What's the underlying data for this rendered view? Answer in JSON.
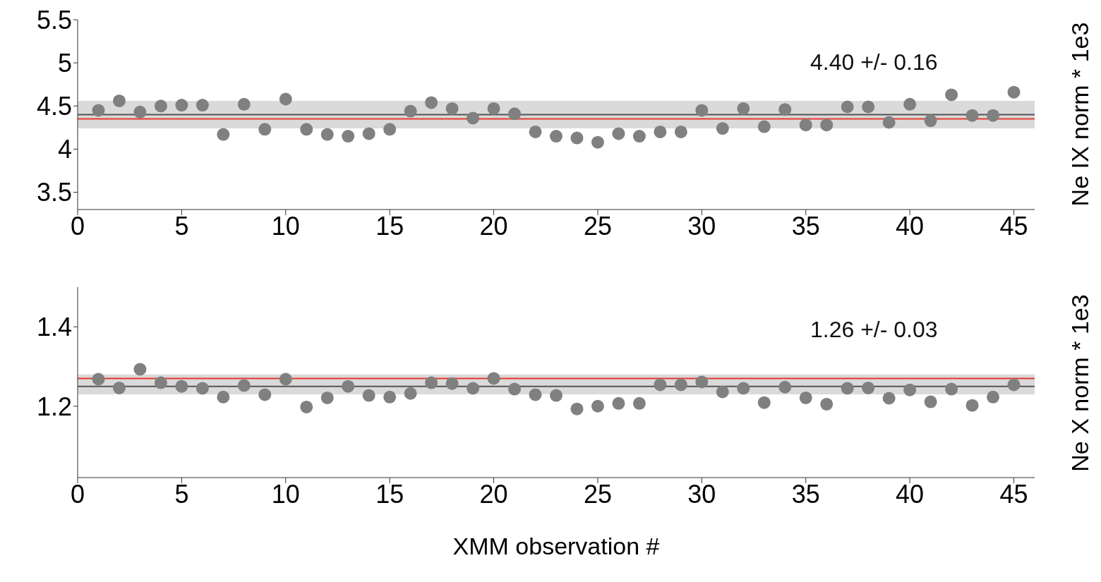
{
  "chart_data": [
    {
      "type": "scatter",
      "ylabel": "Ne IX norm * 1e3",
      "x": [
        1,
        2,
        3,
        4,
        5,
        6,
        7,
        8,
        9,
        10,
        11,
        12,
        13,
        14,
        15,
        16,
        17,
        18,
        19,
        20,
        21,
        22,
        23,
        24,
        25,
        26,
        27,
        28,
        29,
        30,
        31,
        32,
        33,
        34,
        35,
        36,
        37,
        38,
        39,
        40,
        41,
        42,
        43,
        44,
        45
      ],
      "series": [
        {
          "color": "#808080",
          "values": [
            4.45,
            4.56,
            4.43,
            4.5,
            4.51,
            4.51,
            4.17,
            4.52,
            4.23,
            4.58,
            4.23,
            4.17,
            4.15,
            4.18,
            4.23,
            4.44,
            4.54,
            4.47,
            4.36,
            4.47,
            4.41,
            4.2,
            4.15,
            4.13,
            4.08,
            4.18,
            4.15,
            4.2,
            4.2,
            4.45,
            4.24,
            4.47,
            4.26,
            4.46,
            4.28,
            4.28,
            4.49,
            4.49,
            4.31,
            4.52,
            4.33,
            4.63,
            4.39,
            4.39,
            4.66
          ]
        }
      ],
      "xlim": [
        0,
        46
      ],
      "xticks": [
        0,
        5,
        10,
        15,
        20,
        25,
        30,
        35,
        40,
        45
      ],
      "ylim": [
        3.3,
        5.5
      ],
      "yticks": [
        3.5,
        4,
        4.5,
        5,
        5.5
      ],
      "ref_lines": [
        {
          "axis": "y",
          "value": 4.4,
          "color": "#555555"
        },
        {
          "axis": "y",
          "value": 4.35,
          "color": "#e8392f"
        }
      ],
      "bands": [
        {
          "axis": "y",
          "from": 4.24,
          "to": 4.56,
          "color": "#dadada"
        }
      ],
      "annotations": [
        "4.40 +/- 0.16"
      ],
      "marker": "circle",
      "legend": false
    },
    {
      "type": "scatter",
      "xlabel": "XMM observation #",
      "ylabel": "Ne X norm * 1e3",
      "x": [
        1,
        2,
        3,
        4,
        5,
        6,
        7,
        8,
        9,
        10,
        11,
        12,
        13,
        14,
        15,
        16,
        17,
        18,
        19,
        20,
        21,
        22,
        23,
        24,
        25,
        26,
        27,
        28,
        29,
        30,
        31,
        32,
        33,
        34,
        35,
        36,
        37,
        38,
        39,
        40,
        41,
        42,
        43,
        44,
        45
      ],
      "series": [
        {
          "color": "#808080",
          "values": [
            1.268,
            1.246,
            1.293,
            1.259,
            1.25,
            1.245,
            1.223,
            1.252,
            1.229,
            1.268,
            1.198,
            1.221,
            1.25,
            1.227,
            1.223,
            1.232,
            1.259,
            1.257,
            1.245,
            1.27,
            1.243,
            1.229,
            1.227,
            1.193,
            1.2,
            1.207,
            1.207,
            1.254,
            1.254,
            1.261,
            1.236,
            1.245,
            1.209,
            1.248,
            1.221,
            1.205,
            1.245,
            1.246,
            1.22,
            1.241,
            1.211,
            1.243,
            1.202,
            1.223,
            1.254
          ]
        }
      ],
      "xlim": [
        0,
        46
      ],
      "xticks": [
        0,
        5,
        10,
        15,
        20,
        25,
        30,
        35,
        40,
        45
      ],
      "ylim": [
        1.02,
        1.5
      ],
      "yticks": [
        1.2,
        1.4
      ],
      "ref_lines": [
        {
          "axis": "y",
          "value": 1.25,
          "color": "#555555"
        },
        {
          "axis": "y",
          "value": 1.27,
          "color": "#e8392f"
        }
      ],
      "bands": [
        {
          "axis": "y",
          "from": 1.23,
          "to": 1.28,
          "color": "#dadada"
        }
      ],
      "annotations": [
        "1.26 +/- 0.03"
      ],
      "marker": "circle",
      "legend": false
    }
  ]
}
